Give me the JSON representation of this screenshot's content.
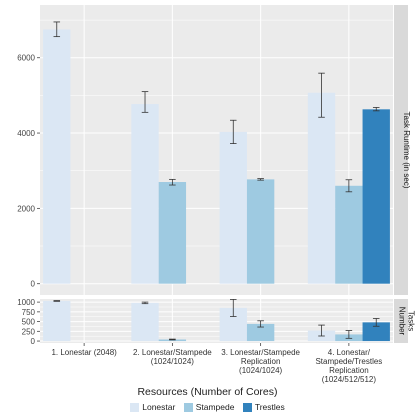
{
  "chart_data": [
    {
      "type": "bar",
      "strip_label": "Task Runtime (in sec)",
      "categories": [
        [
          "1. Lonestar (2048)"
        ],
        [
          "2. Lonestar/Stampede",
          "(1024/1024)"
        ],
        [
          "3. Lonestar/Stampede",
          "Replication",
          "(1024/1024)"
        ],
        [
          "4. Lonestar/",
          "Stampede/Trestles",
          "Replication",
          "(1024/512/512)"
        ]
      ],
      "series": [
        {
          "name": "Lonestar",
          "values": [
            6750,
            4770,
            4030,
            5070
          ],
          "err_low": [
            6560,
            4550,
            3720,
            4420
          ],
          "err_high": [
            6950,
            5100,
            4340,
            5590
          ]
        },
        {
          "name": "Stampede",
          "values": [
            null,
            2700,
            2770,
            2600
          ],
          "err_low": [
            null,
            2620,
            2750,
            2440
          ],
          "err_high": [
            null,
            2770,
            2790,
            2760
          ]
        },
        {
          "name": "Trestles",
          "values": [
            null,
            null,
            null,
            4630
          ],
          "err_low": [
            null,
            null,
            null,
            4590
          ],
          "err_high": [
            null,
            null,
            null,
            4680
          ]
        }
      ],
      "ylim": [
        -300,
        7400
      ],
      "yticks": [
        0,
        2000,
        4000,
        6000
      ],
      "ytick_labels": [
        "0",
        "2000",
        "4000",
        "6000"
      ]
    },
    {
      "type": "bar",
      "strip_label": [
        "Number",
        "Tasks"
      ],
      "categories": [
        [
          "1. Lonestar (2048)"
        ],
        [
          "2. Lonestar/Stampede",
          "(1024/1024)"
        ],
        [
          "3. Lonestar/Stampede",
          "Replication",
          "(1024/1024)"
        ],
        [
          "4. Lonestar/",
          "Stampede/Trestles",
          "Replication",
          "(1024/512/512)"
        ]
      ],
      "series": [
        {
          "name": "Lonestar",
          "values": [
            1030,
            980,
            850,
            270
          ],
          "err_low": [
            1020,
            960,
            630,
            130
          ],
          "err_high": [
            1040,
            1000,
            1070,
            410
          ]
        },
        {
          "name": "Stampede",
          "values": [
            null,
            40,
            440,
            170
          ],
          "err_low": [
            null,
            30,
            360,
            70
          ],
          "err_high": [
            null,
            50,
            520,
            270
          ]
        },
        {
          "name": "Trestles",
          "values": [
            null,
            null,
            null,
            480
          ],
          "err_low": [
            null,
            null,
            null,
            380
          ],
          "err_high": [
            null,
            null,
            null,
            580
          ]
        }
      ],
      "ylim": [
        -50,
        1080
      ],
      "yticks": [
        0,
        250,
        500,
        750,
        1000
      ],
      "ytick_labels": [
        "0",
        "250",
        "500",
        "750",
        "1000"
      ]
    }
  ],
  "colors": {
    "Lonestar": "#dbe7f4",
    "Stampede": "#9ecae1",
    "Trestles": "#3182bd",
    "panel_bg": "#ebebeb",
    "grid": "#ffffff",
    "strip_bg": "#d9d9d9",
    "errorbar": "#333333"
  },
  "legend": {
    "title": "Resources (Number of Cores)",
    "items": [
      {
        "name": "Lonestar",
        "color": "#dbe7f4"
      },
      {
        "name": "Stampede",
        "color": "#9ecae1"
      },
      {
        "name": "Trestles",
        "color": "#3182bd"
      }
    ]
  }
}
